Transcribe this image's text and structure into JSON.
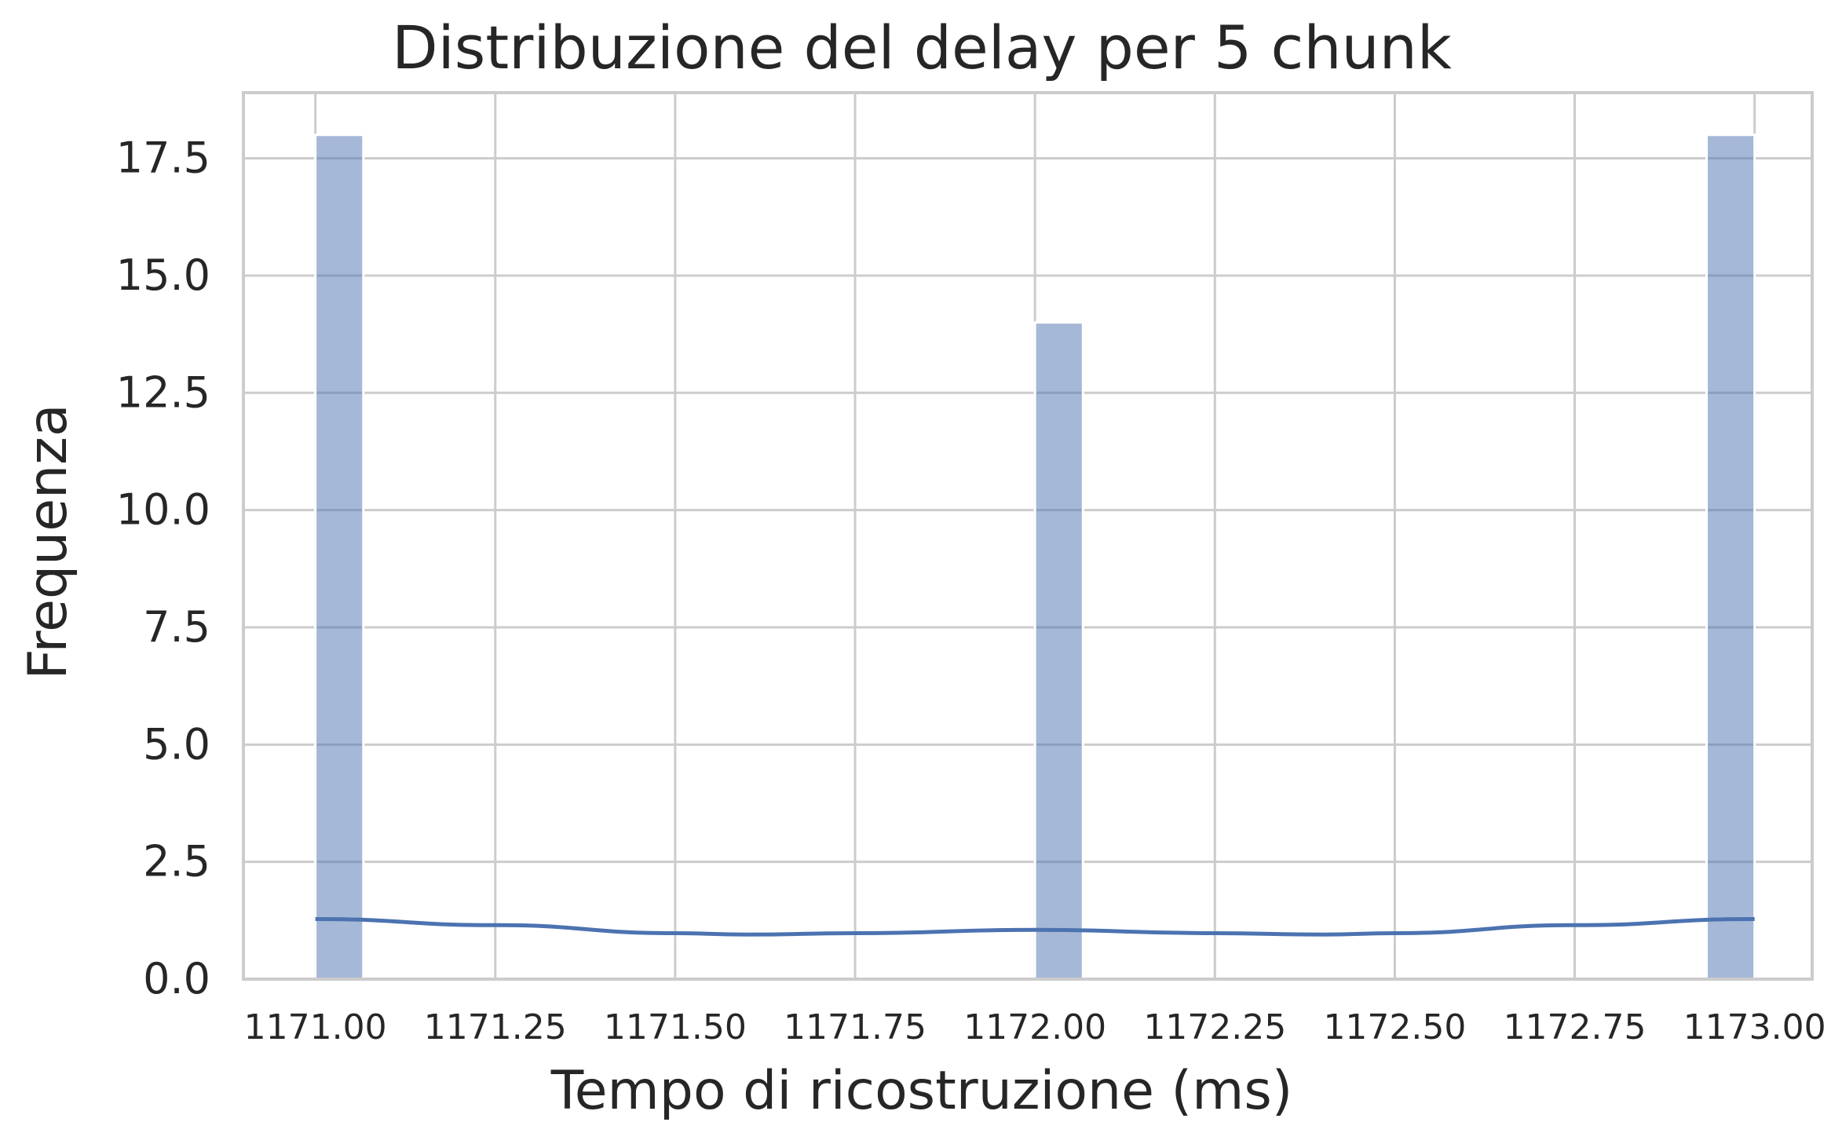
{
  "chart_data": {
    "type": "bar",
    "title": "Distribuzione del delay per 5 chunk",
    "xlabel": "Tempo di ricostruzione (ms)",
    "ylabel": "Frequenza",
    "xlim": [
      1170.9,
      1173.08
    ],
    "ylim": [
      0,
      18.9
    ],
    "xticks": [
      1171.0,
      1171.25,
      1171.5,
      1171.75,
      1172.0,
      1172.25,
      1172.5,
      1172.75,
      1173.0
    ],
    "xtick_labels": [
      "1171.00",
      "1171.25",
      "1171.50",
      "1171.75",
      "1172.00",
      "1172.25",
      "1172.50",
      "1172.75",
      "1173.00"
    ],
    "yticks": [
      0,
      2.5,
      5,
      7.5,
      10,
      12.5,
      15,
      17.5
    ],
    "ytick_labels": [
      "0.0",
      "2.5",
      "5.0",
      "7.5",
      "10.0",
      "12.5",
      "15.0",
      "17.5"
    ],
    "grid": true,
    "bars": [
      {
        "x_start": 1171.0,
        "x_end": 1171.0667,
        "value": 18
      },
      {
        "x_start": 1172.0,
        "x_end": 1172.0667,
        "value": 14
      },
      {
        "x_start": 1172.9333,
        "x_end": 1173.0,
        "value": 18
      }
    ],
    "kde_line": {
      "x": [
        1171.0,
        1171.25,
        1171.5,
        1171.6,
        1171.75,
        1172.0,
        1172.25,
        1172.4,
        1172.5,
        1172.75,
        1173.0
      ],
      "y": [
        1.28,
        1.15,
        0.98,
        0.95,
        0.98,
        1.05,
        0.98,
        0.95,
        0.98,
        1.15,
        1.28
      ]
    },
    "colors": {
      "bar": "#4c72b0",
      "line": "#4c72b0",
      "grid": "#cccccc",
      "axes": "#cccccc",
      "text": "#262626"
    }
  }
}
